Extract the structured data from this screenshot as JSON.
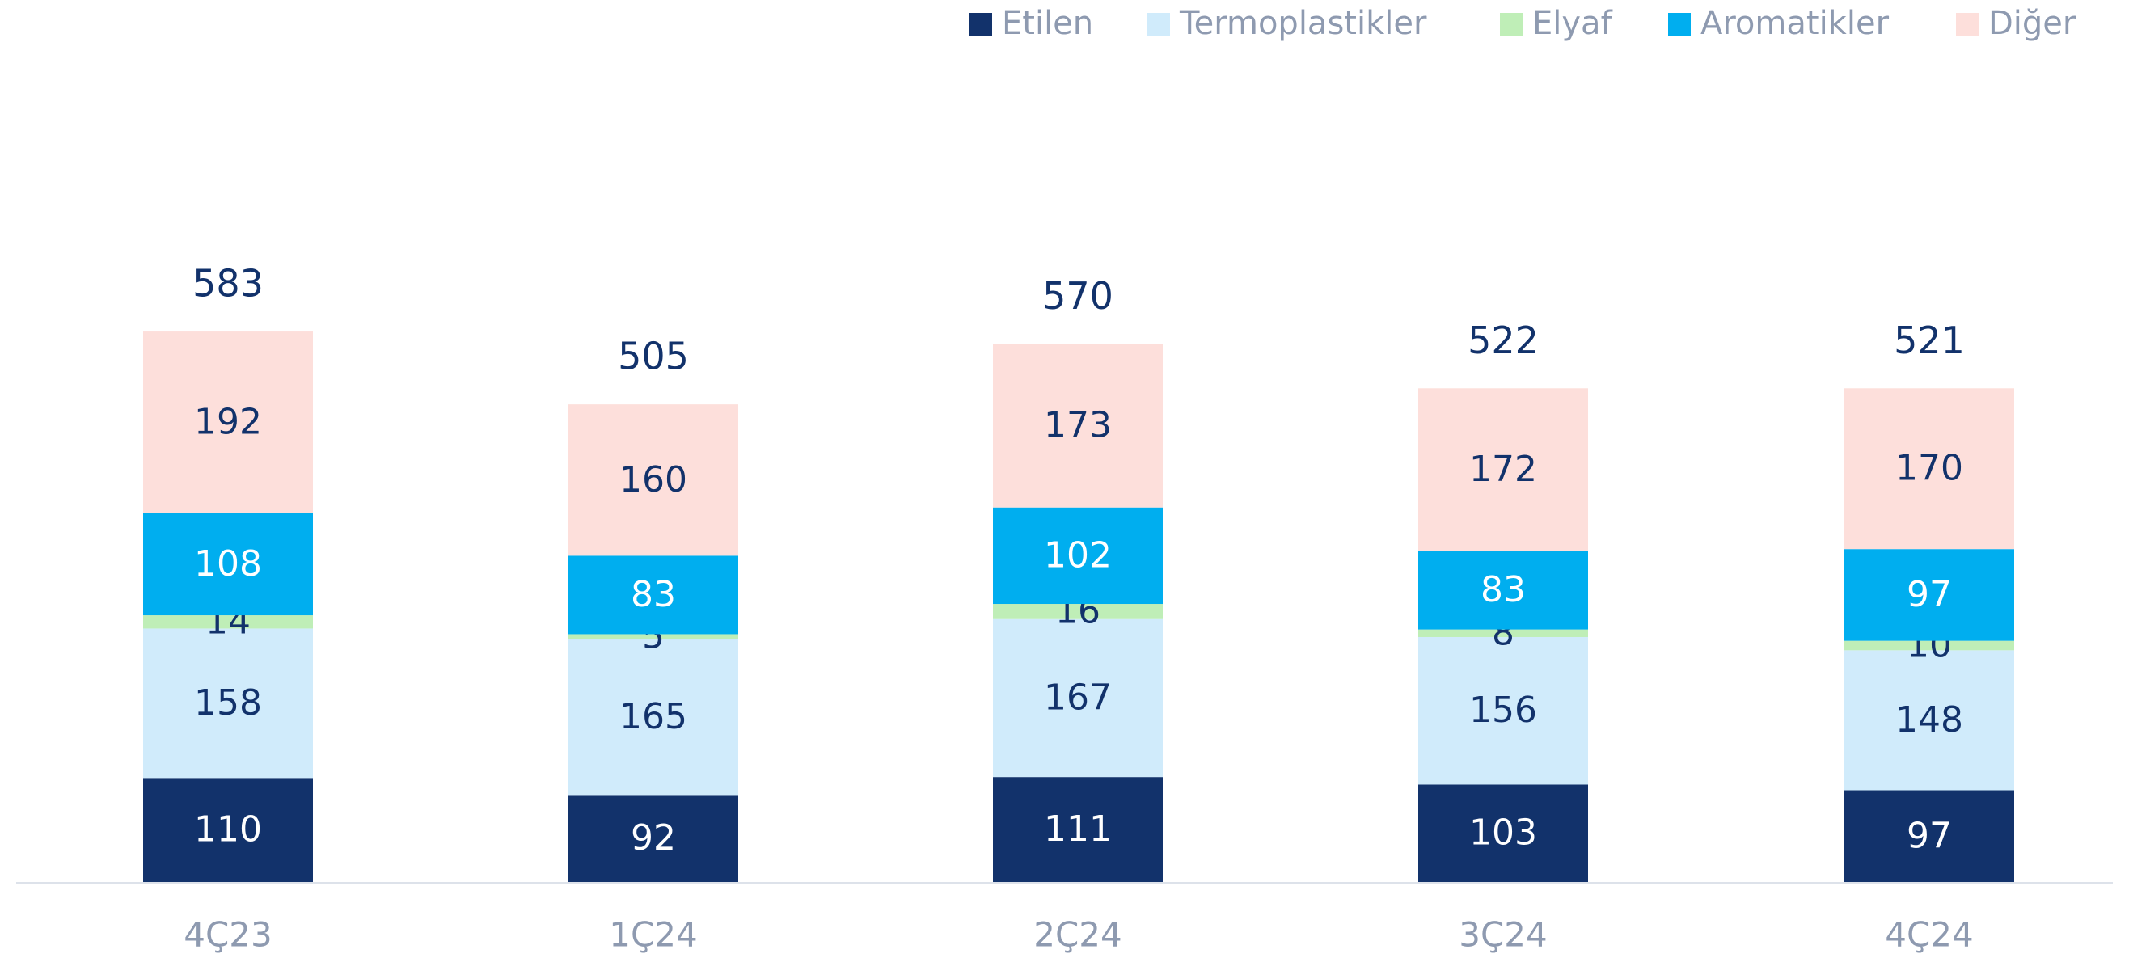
{
  "chart_data": {
    "type": "stacked_bar",
    "categories": [
      "4Ç23",
      "1Ç24",
      "2Ç24",
      "3Ç24",
      "4Ç24"
    ],
    "series": [
      {
        "name": "Etilen",
        "color": "#12326b",
        "label_color": "#ffffff",
        "values": [
          110,
          92,
          111,
          103,
          97
        ]
      },
      {
        "name": "Termoplastikler",
        "color": "#d0ebfb",
        "label_color": "#12326b",
        "values": [
          158,
          165,
          167,
          156,
          148
        ]
      },
      {
        "name": "Elyaf",
        "color": "#bfeeb7",
        "label_color": "#12326b",
        "values": [
          14,
          5,
          16,
          8,
          10
        ]
      },
      {
        "name": "Aromatikler",
        "color": "#00aeef",
        "label_color": "#ffffff",
        "values": [
          108,
          83,
          102,
          83,
          97
        ]
      },
      {
        "name": "Diğer",
        "color": "#fddfdb",
        "label_color": "#12326b",
        "values": [
          192,
          160,
          173,
          172,
          170
        ]
      }
    ],
    "totals": [
      583,
      505,
      570,
      522,
      521
    ],
    "legend": "top-right"
  }
}
